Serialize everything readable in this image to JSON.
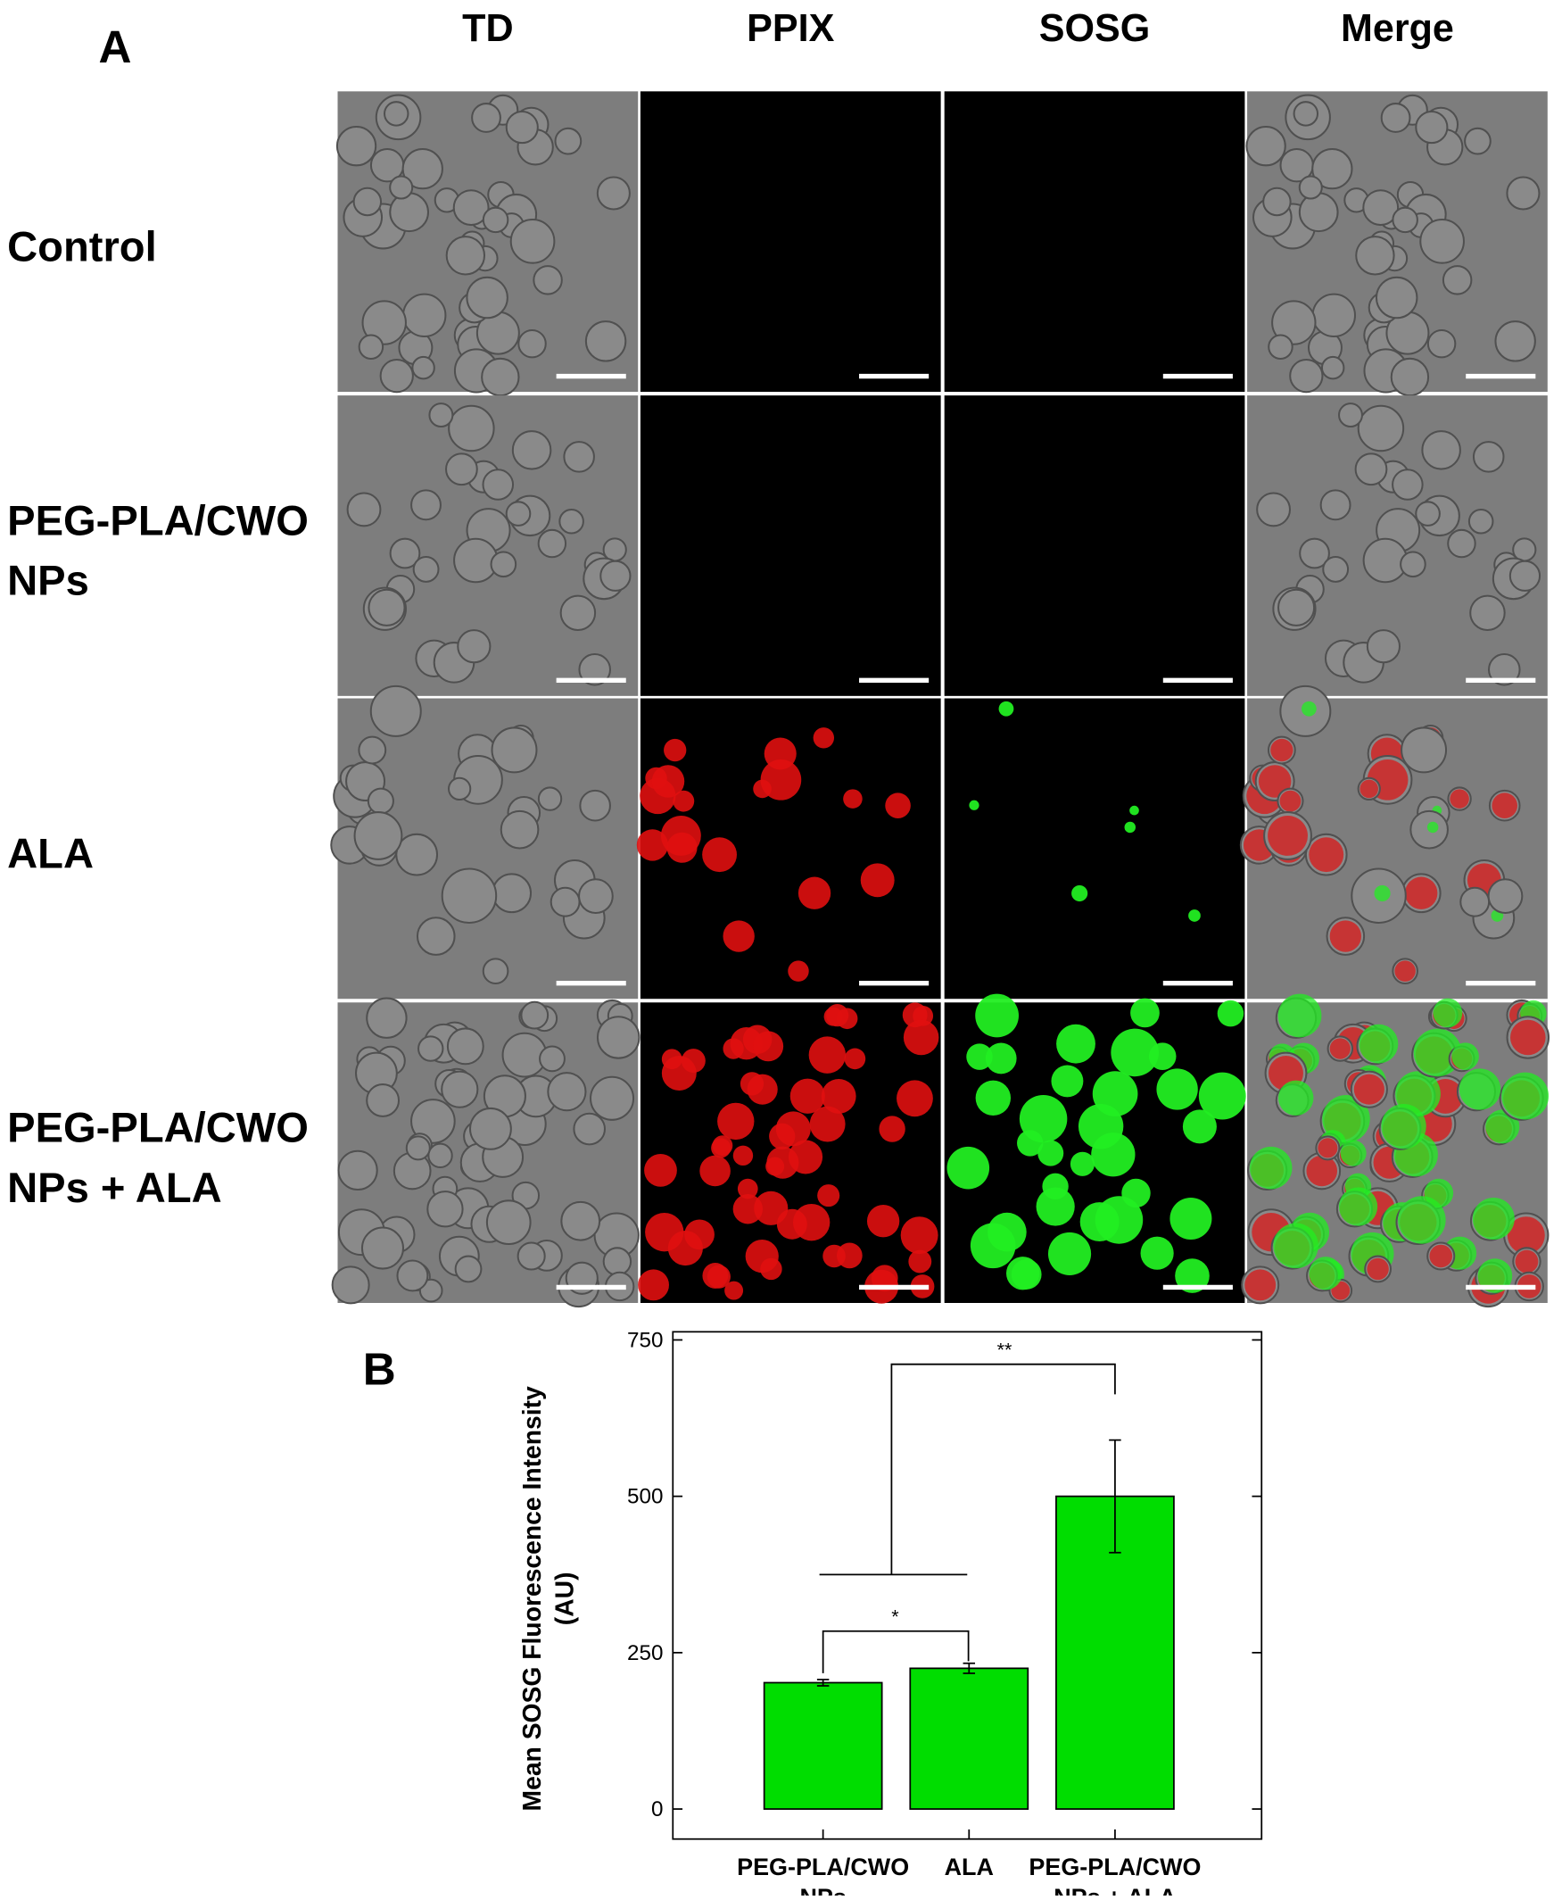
{
  "panels": {
    "a_label": "A",
    "b_label": "B",
    "columns": [
      "TD",
      "PPIX",
      "SOSG",
      "Merge"
    ],
    "rows": [
      "Control",
      "PEG-PLA/CWO NPs",
      "ALA",
      "PEG-PLA/CWO NPs + ALA"
    ]
  },
  "chart_data": {
    "type": "bar",
    "y_label": "Mean SOSG Fluorescence Intensity (AU)",
    "categories": [
      "PEG-PLA/CWO NPs",
      "ALA",
      "PEG-PLA/CWO NPs + ALA"
    ],
    "values": [
      202,
      225,
      500
    ],
    "errors": [
      5,
      8,
      90
    ],
    "color": "#00dd00",
    "ylim": [
      -48,
      763
    ],
    "yticks": [
      0,
      250,
      500,
      750
    ],
    "annotations": [
      "*",
      "**"
    ]
  }
}
